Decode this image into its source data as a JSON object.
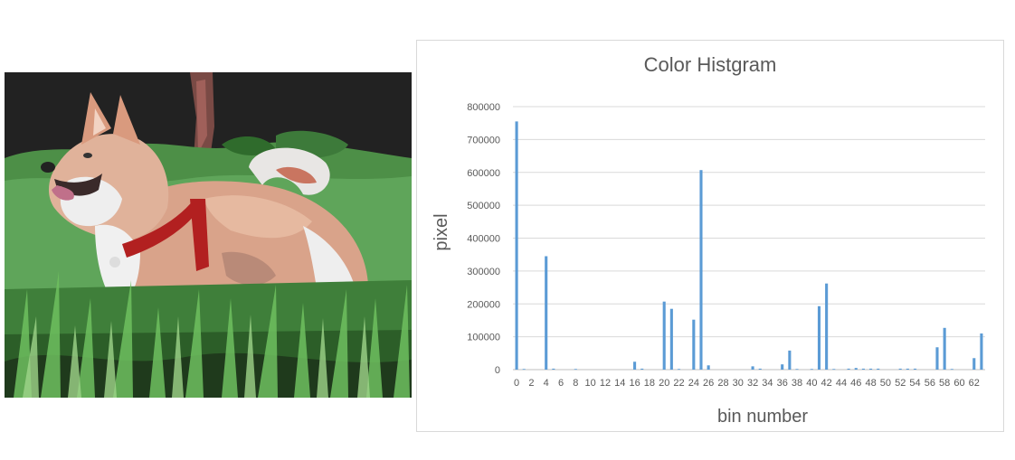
{
  "image": {
    "subject": "dog-photo"
  },
  "chart_data": {
    "type": "bar",
    "title": "Color Histgram",
    "xlabel": "bin number",
    "ylabel": "pixel",
    "ylim": [
      0,
      800000
    ],
    "yticks": [
      "0",
      "100000",
      "200000",
      "300000",
      "400000",
      "500000",
      "600000",
      "700000",
      "800000"
    ],
    "xtick_labels": [
      "0",
      "2",
      "4",
      "6",
      "8",
      "10",
      "12",
      "14",
      "16",
      "18",
      "20",
      "22",
      "24",
      "26",
      "28",
      "30",
      "32",
      "34",
      "36",
      "38",
      "40",
      "42",
      "44",
      "46",
      "48",
      "50",
      "52",
      "54",
      "56",
      "58",
      "60",
      "62"
    ],
    "categories": [
      0,
      1,
      2,
      3,
      4,
      5,
      6,
      7,
      8,
      9,
      10,
      11,
      12,
      13,
      14,
      15,
      16,
      17,
      18,
      19,
      20,
      21,
      22,
      23,
      24,
      25,
      26,
      27,
      28,
      29,
      30,
      31,
      32,
      33,
      34,
      35,
      36,
      37,
      38,
      39,
      40,
      41,
      42,
      43,
      44,
      45,
      46,
      47,
      48,
      49,
      50,
      51,
      52,
      53,
      54,
      55,
      56,
      57,
      58,
      59,
      60,
      61,
      62,
      63
    ],
    "values": [
      755000,
      2000,
      0,
      0,
      345000,
      3000,
      0,
      0,
      2000,
      0,
      0,
      0,
      0,
      0,
      0,
      0,
      24000,
      3000,
      0,
      0,
      207000,
      185000,
      2000,
      0,
      152000,
      607000,
      13000,
      0,
      0,
      0,
      0,
      0,
      10000,
      3000,
      0,
      0,
      16000,
      58000,
      2000,
      0,
      2000,
      193000,
      262000,
      2000,
      0,
      3000,
      5000,
      3000,
      3000,
      3000,
      0,
      0,
      3000,
      3000,
      3000,
      0,
      0,
      68000,
      127000,
      2000,
      0,
      0,
      35000,
      110000
    ],
    "bar_color": "#5b9bd5",
    "grid": true,
    "legend": "none"
  }
}
